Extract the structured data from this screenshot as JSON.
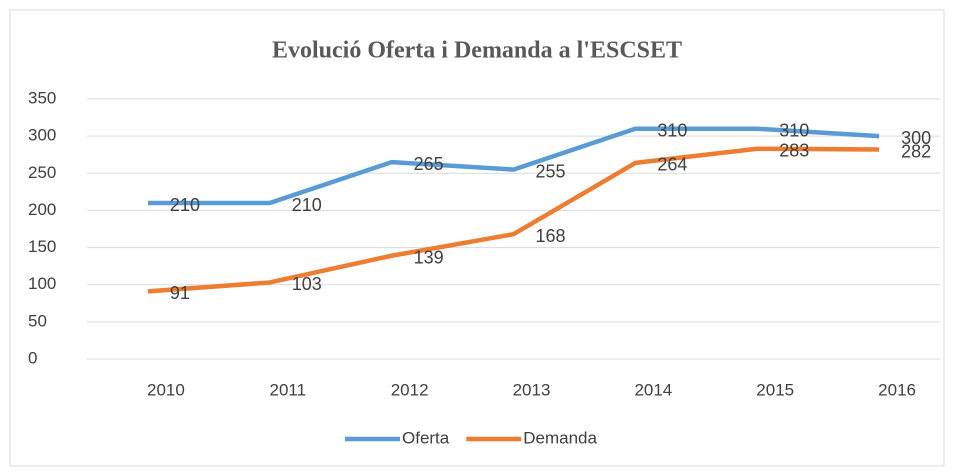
{
  "chart_data": {
    "type": "line",
    "title": "Evolució Oferta i Demanda a l'ESCSET",
    "categories": [
      "2010",
      "2011",
      "2012",
      "2013",
      "2014",
      "2015",
      "2016"
    ],
    "series": [
      {
        "name": "Oferta",
        "color": "#5b9bd5",
        "values": [
          210,
          210,
          265,
          255,
          310,
          310,
          300
        ]
      },
      {
        "name": "Demanda",
        "color": "#ed7d31",
        "values": [
          91,
          103,
          139,
          168,
          264,
          283,
          282
        ]
      }
    ],
    "ylim": [
      0,
      350
    ],
    "yticks": [
      0,
      50,
      100,
      150,
      200,
      250,
      300,
      350
    ],
    "grid": true,
    "legend": "bottom"
  }
}
